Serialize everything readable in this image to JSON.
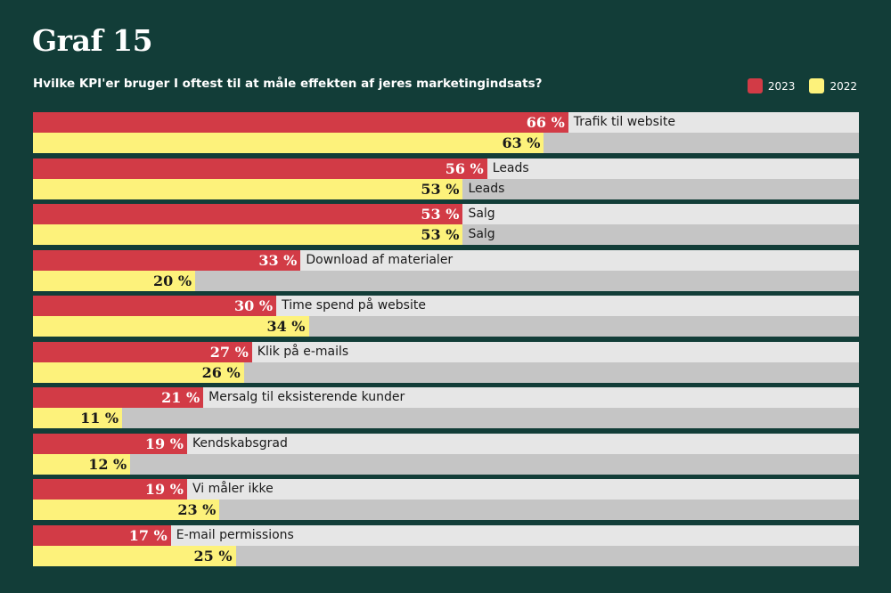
{
  "header": {
    "title": "Graf 15",
    "subtitle": "Hvilke KPI'er bruger I oftest til at måle effekten af jeres marketingindsats?"
  },
  "legend": [
    {
      "label": "2023",
      "color": "#d23b46"
    },
    {
      "label": "2022",
      "color": "#fdf27b"
    }
  ],
  "chart_data": {
    "type": "bar",
    "orientation": "horizontal",
    "unit": "%",
    "xlim": [
      0,
      100
    ],
    "legend_position": "top-right",
    "categories": [
      "Trafik til website",
      "Leads",
      "Salg",
      "Download af materialer",
      "Time spend på website",
      "Klik på e-mails",
      "Mersalg til eksisterende kunder",
      "Kendskabsgrad",
      "Vi måler ikke",
      "E-mail permissions"
    ],
    "series": [
      {
        "name": "2023",
        "color": "#d23b46",
        "values": [
          66,
          56,
          53,
          33,
          30,
          27,
          21,
          19,
          19,
          17
        ]
      },
      {
        "name": "2022",
        "color": "#fdf27b",
        "values": [
          63,
          53,
          53,
          20,
          34,
          26,
          11,
          12,
          23,
          25
        ]
      }
    ]
  }
}
